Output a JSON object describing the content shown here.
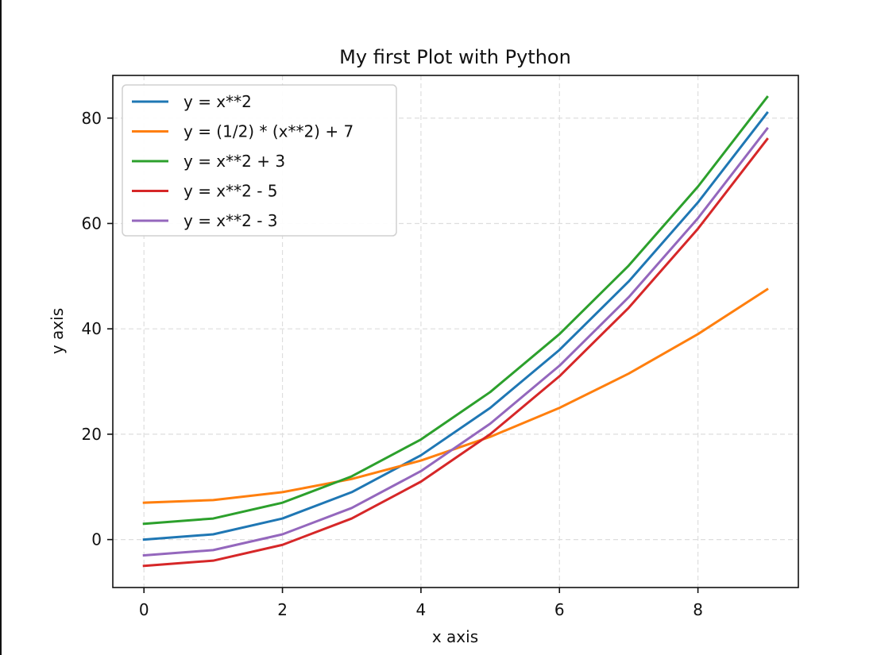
{
  "chart_data": {
    "type": "line",
    "title": "My first Plot with Python",
    "xlabel": "x axis",
    "ylabel": "y axis",
    "x": [
      0,
      1,
      2,
      3,
      4,
      5,
      6,
      7,
      8,
      9
    ],
    "xlim": [
      -0.45,
      9.45
    ],
    "ylim": [
      -9.1,
      88.1
    ],
    "xticks": [
      0,
      2,
      4,
      6,
      8
    ],
    "yticks": [
      0,
      20,
      40,
      60,
      80
    ],
    "grid": true,
    "legend_position": "top-left",
    "series": [
      {
        "name": "y = x**2",
        "color": "#1f77b4",
        "values": [
          0,
          1,
          4,
          9,
          16,
          25,
          36,
          49,
          64,
          81
        ]
      },
      {
        "name": "y = (1/2) * (x**2) + 7",
        "color": "#ff7f0e",
        "values": [
          7,
          7.5,
          9,
          11.5,
          15,
          19.5,
          25,
          31.5,
          39,
          47.5
        ]
      },
      {
        "name": "y = x**2 + 3",
        "color": "#2ca02c",
        "values": [
          3,
          4,
          7,
          12,
          19,
          28,
          39,
          52,
          67,
          84
        ]
      },
      {
        "name": "y = x**2 - 5",
        "color": "#d62728",
        "values": [
          -5,
          -4,
          -1,
          4,
          11,
          20,
          31,
          44,
          59,
          76
        ]
      },
      {
        "name": "y = x**2 - 3",
        "color": "#9467bd",
        "values": [
          -3,
          -2,
          1,
          6,
          13,
          22,
          33,
          46,
          61,
          78
        ]
      }
    ]
  }
}
